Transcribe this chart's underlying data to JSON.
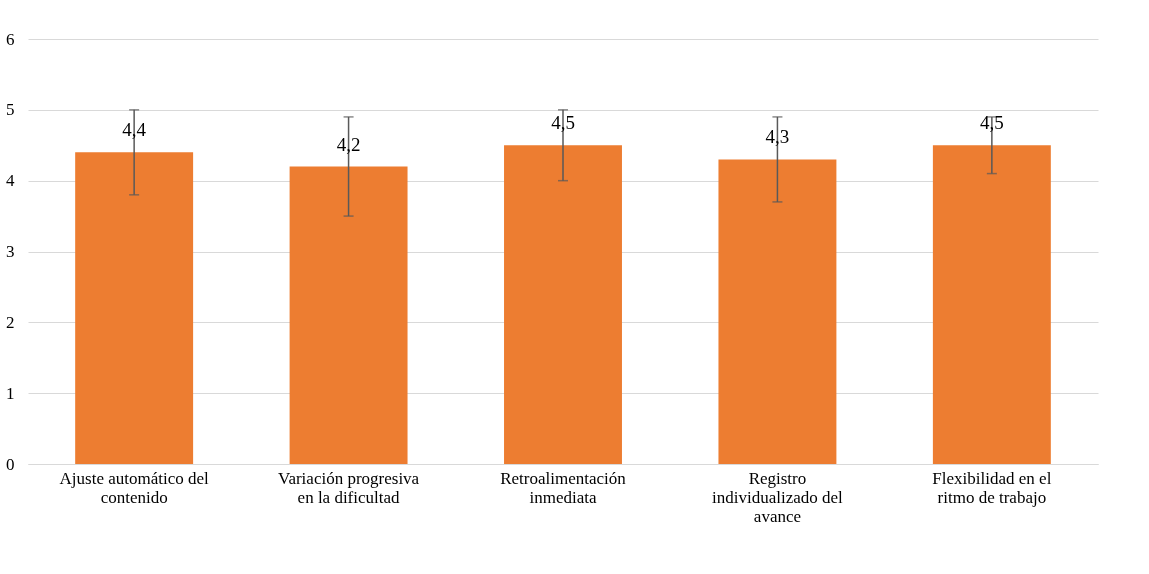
{
  "chart_data": {
    "type": "bar",
    "categories": [
      "Ajuste automático del contenido",
      "Variación progresiva en la dificultad",
      "Retroalimentación inmediata",
      "Registro individualizado del avance",
      "Flexibilidad en el ritmo de trabajo"
    ],
    "values": [
      4.4,
      4.2,
      4.5,
      4.3,
      4.5
    ],
    "value_labels": [
      "4,4",
      "4,2",
      "4,5",
      "4,3",
      "4,5"
    ],
    "errors": [
      0.6,
      0.7,
      0.5,
      0.6,
      0.4
    ],
    "color": "#ed7d31",
    "ylim": [
      0,
      6
    ],
    "yticks": [
      0,
      1,
      2,
      3,
      4,
      5,
      6
    ],
    "grid": "y"
  }
}
